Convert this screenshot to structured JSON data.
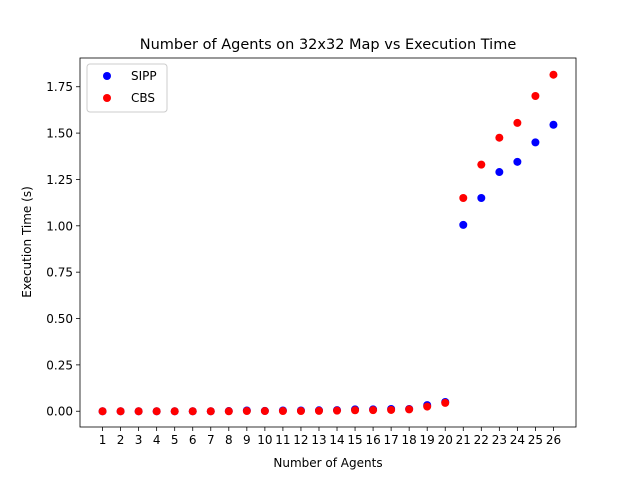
{
  "chart_data": {
    "type": "scatter",
    "title": "Number of Agents on 32x32 Map vs Execution Time",
    "xlabel": "Number of Agents",
    "ylabel": "Execution Time (s)",
    "x": [
      1,
      2,
      3,
      4,
      5,
      6,
      7,
      8,
      9,
      10,
      11,
      12,
      13,
      14,
      15,
      16,
      17,
      18,
      19,
      20,
      21,
      22,
      23,
      24,
      25,
      26
    ],
    "x_ticks": [
      "1",
      "2",
      "3",
      "4",
      "5",
      "6",
      "7",
      "8",
      "9",
      "10",
      "11",
      "12",
      "13",
      "14",
      "15",
      "16",
      "17",
      "18",
      "19",
      "20",
      "21",
      "22",
      "23",
      "24",
      "25",
      "26"
    ],
    "xlim": [
      -0.25,
      27.25
    ],
    "ylim": [
      -0.085,
      1.905
    ],
    "y_ticks": [
      "0.00",
      "0.25",
      "0.50",
      "0.75",
      "1.00",
      "1.25",
      "1.50",
      "1.75"
    ],
    "grid": false,
    "legend_position": "top-left",
    "series": [
      {
        "name": "SIPP",
        "color": "#0000ff",
        "values": [
          0.0,
          0.0,
          0.0,
          0.0,
          0.0,
          0.0,
          0.0,
          0.001,
          0.004,
          0.002,
          0.004,
          0.004,
          0.005,
          0.006,
          0.01,
          0.01,
          0.012,
          0.012,
          0.033,
          0.05,
          1.005,
          1.15,
          1.29,
          1.345,
          1.45,
          1.545
        ]
      },
      {
        "name": "CBS",
        "color": "#ff0000",
        "values": [
          0.0,
          0.0,
          0.0,
          0.0,
          0.0,
          0.0,
          0.0,
          0.0,
          0.001,
          0.001,
          0.001,
          0.001,
          0.002,
          0.003,
          0.005,
          0.006,
          0.007,
          0.01,
          0.025,
          0.045,
          1.15,
          1.33,
          1.475,
          1.555,
          1.7,
          1.815
        ]
      }
    ]
  }
}
